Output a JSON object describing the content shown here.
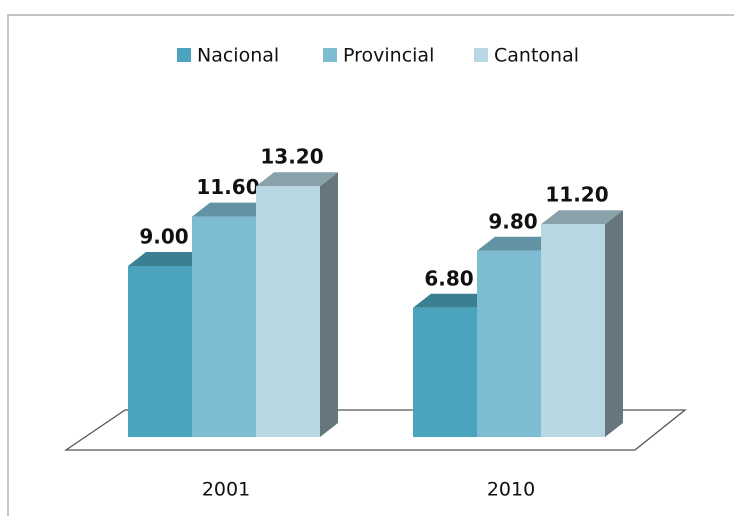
{
  "chart_data": {
    "type": "bar3d",
    "categories": [
      "2001",
      "2010"
    ],
    "series": [
      {
        "name": "Nacional",
        "color": "#4ba3bd",
        "values": [
          9.0,
          6.8
        ],
        "value_labels": [
          "9.00",
          "6.80"
        ]
      },
      {
        "name": "Provincial",
        "color": "#7dbcd3",
        "values": [
          11.6,
          9.8
        ],
        "value_labels": [
          "11.60",
          "9.80"
        ]
      },
      {
        "name": "Cantonal",
        "color": "#b7d8e3",
        "values": [
          13.2,
          11.2
        ],
        "value_labels": [
          "13.20",
          "11.20"
        ]
      }
    ],
    "legend": "top"
  }
}
